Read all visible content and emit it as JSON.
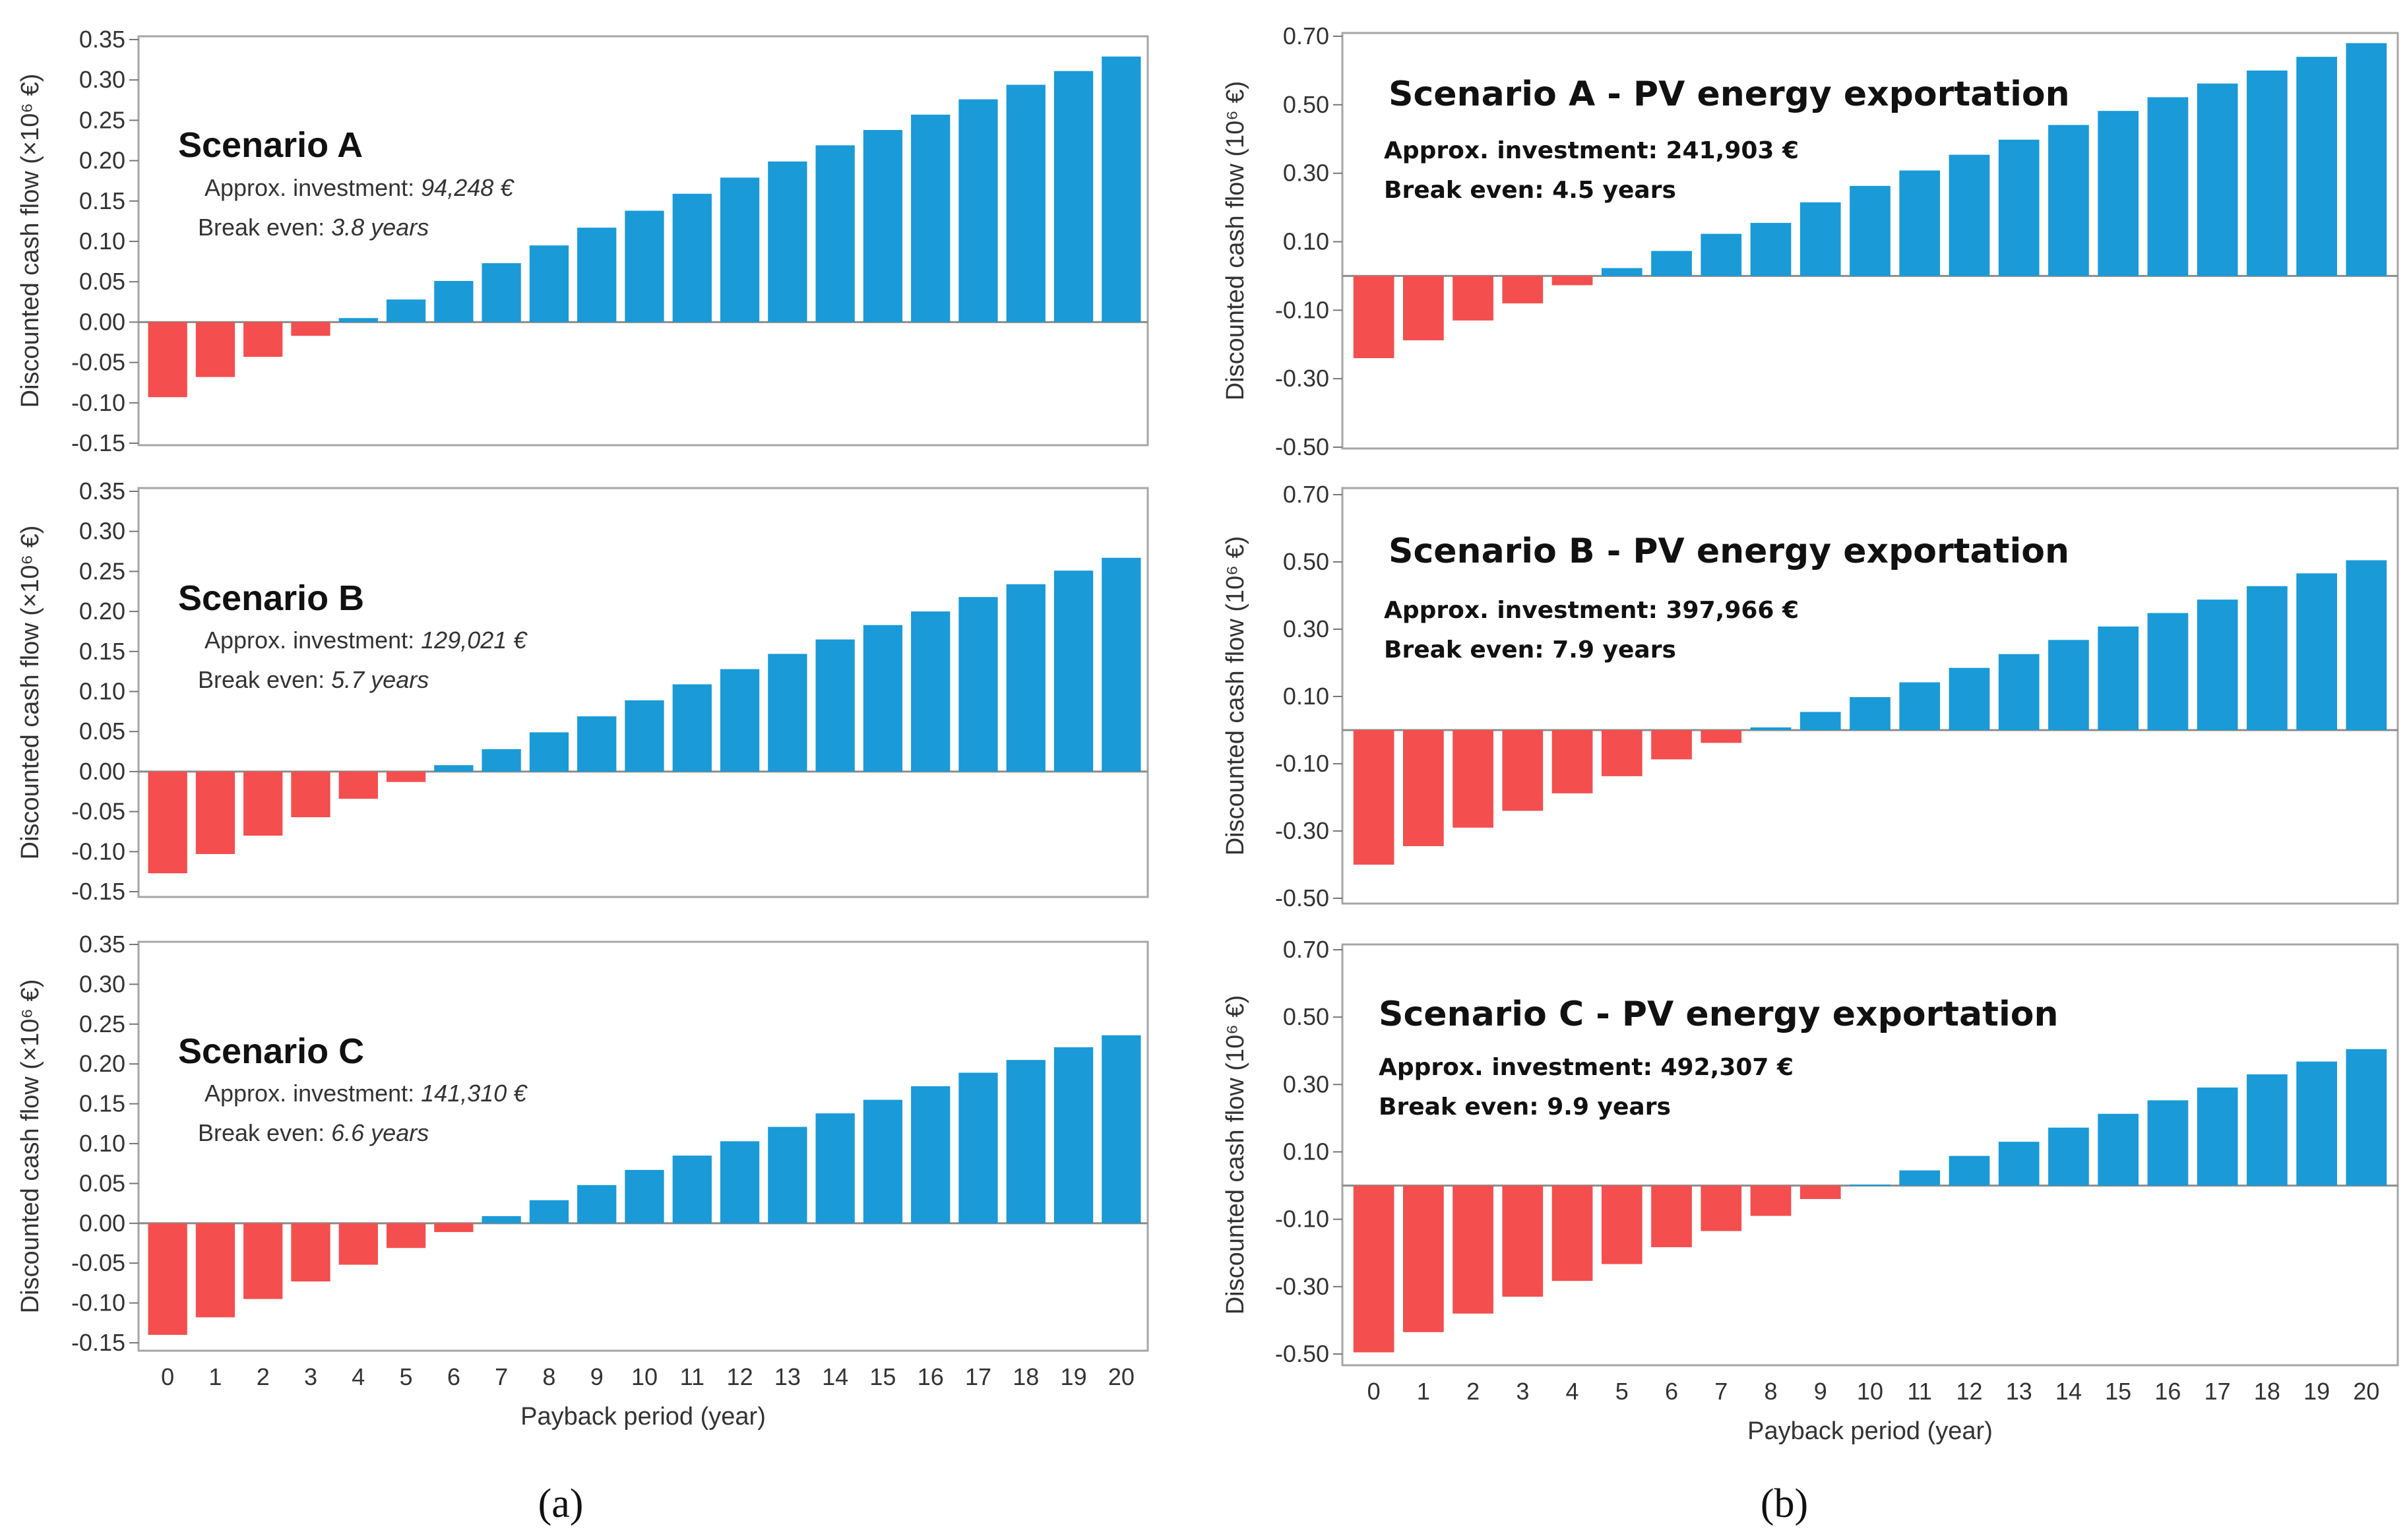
{
  "colors": {
    "negative": "#f44e4e",
    "positive": "#1a9ad7",
    "frame": "#a6a6a6"
  },
  "panel_labels": {
    "a": "(a)",
    "b": "(b)"
  },
  "chart_data": [
    {
      "type": "bar",
      "column": "a",
      "title": "Scenario A",
      "investment_label": "Approx. investment: ",
      "investment_value": "94,248 €",
      "break_even_label": "Break even: ",
      "break_even_value": "3.8 years",
      "ylabel": "Discounted cash flow (×10⁶ €)",
      "xlabel": "",
      "ylim": [
        -0.15,
        0.35
      ],
      "yticks": [
        "-0.15",
        "-0.10",
        "-0.05",
        "0.00",
        "0.05",
        "0.10",
        "0.15",
        "0.20",
        "0.25",
        "0.30",
        "0.35"
      ],
      "categories": [
        "0",
        "1",
        "2",
        "3",
        "4",
        "5",
        "6",
        "7",
        "8",
        "9",
        "10",
        "11",
        "12",
        "13",
        "14",
        "15",
        "16",
        "17",
        "18",
        "19",
        "20"
      ],
      "values": [
        -0.093,
        -0.068,
        -0.043,
        -0.017,
        0.005,
        0.028,
        0.051,
        0.073,
        0.095,
        0.117,
        0.138,
        0.159,
        0.179,
        0.199,
        0.219,
        0.238,
        0.257,
        0.276,
        0.294,
        0.311,
        0.329
      ]
    },
    {
      "type": "bar",
      "column": "a",
      "title": "Scenario B",
      "investment_label": "Approx. investment: ",
      "investment_value": "129,021 €",
      "break_even_label": "Break even: ",
      "break_even_value": "5.7 years",
      "ylabel": "Discounted cash flow (×10⁶ €)",
      "xlabel": "",
      "ylim": [
        -0.15,
        0.35
      ],
      "yticks": [
        "-0.15",
        "-0.10",
        "-0.05",
        "0.00",
        "0.05",
        "0.10",
        "0.15",
        "0.20",
        "0.25",
        "0.30",
        "0.35"
      ],
      "categories": [
        "0",
        "1",
        "2",
        "3",
        "4",
        "5",
        "6",
        "7",
        "8",
        "9",
        "10",
        "11",
        "12",
        "13",
        "14",
        "15",
        "16",
        "17",
        "18",
        "19",
        "20"
      ],
      "values": [
        -0.127,
        -0.103,
        -0.08,
        -0.057,
        -0.034,
        -0.013,
        0.008,
        0.028,
        0.049,
        0.069,
        0.089,
        0.109,
        0.128,
        0.147,
        0.165,
        0.183,
        0.2,
        0.218,
        0.234,
        0.251,
        0.267
      ]
    },
    {
      "type": "bar",
      "column": "a",
      "title": "Scenario C",
      "investment_label": "Approx. investment: ",
      "investment_value": "141,310 €",
      "break_even_label": "Break even: ",
      "break_even_value": "6.6 years",
      "ylabel": "Discounted cash flow (×10⁶ €)",
      "xlabel": "Payback period (year)",
      "ylim": [
        -0.15,
        0.35
      ],
      "yticks": [
        "-0.15",
        "-0.10",
        "-0.05",
        "0.00",
        "0.05",
        "0.10",
        "0.15",
        "0.20",
        "0.25",
        "0.30",
        "0.35"
      ],
      "categories": [
        "0",
        "1",
        "2",
        "3",
        "4",
        "5",
        "6",
        "7",
        "8",
        "9",
        "10",
        "11",
        "12",
        "13",
        "14",
        "15",
        "16",
        "17",
        "18",
        "19",
        "20"
      ],
      "values": [
        -0.14,
        -0.118,
        -0.095,
        -0.073,
        -0.052,
        -0.031,
        -0.011,
        0.009,
        0.029,
        0.048,
        0.067,
        0.085,
        0.103,
        0.121,
        0.138,
        0.155,
        0.172,
        0.189,
        0.205,
        0.221,
        0.236
      ]
    },
    {
      "type": "bar",
      "column": "b",
      "title": "Scenario A - PV energy exportation",
      "investment_label": "Approx. investment: ",
      "investment_value": "241,903 €",
      "break_even_label": "Break even: ",
      "break_even_value": "4.5 years",
      "ylabel": "Discounted cash flow (10⁶ €)",
      "xlabel": "",
      "ylim": [
        -0.5,
        0.7
      ],
      "yticks": [
        "-0.50",
        "-0.30",
        "-0.10",
        "0.10",
        "0.30",
        "0.50",
        "0.70"
      ],
      "categories": [
        "0",
        "1",
        "2",
        "3",
        "4",
        "5",
        "6",
        "7",
        "8",
        "9",
        "10",
        "11",
        "12",
        "13",
        "14",
        "15",
        "16",
        "17",
        "18",
        "19",
        "20"
      ],
      "values": [
        -0.24,
        -0.188,
        -0.13,
        -0.08,
        -0.027,
        0.023,
        0.073,
        0.123,
        0.155,
        0.215,
        0.263,
        0.308,
        0.354,
        0.398,
        0.441,
        0.482,
        0.522,
        0.562,
        0.6,
        0.64,
        0.68
      ]
    },
    {
      "type": "bar",
      "column": "b",
      "title": "Scenario B - PV energy exportation",
      "investment_label": "Approx. investment: ",
      "investment_value": "397,966 €",
      "break_even_label": "Break even: ",
      "break_even_value": "7.9 years",
      "ylabel": "Discounted cash flow (10⁶ €)",
      "xlabel": "",
      "ylim": [
        -0.5,
        0.7
      ],
      "yticks": [
        "-0.50",
        "-0.30",
        "-0.10",
        "0.10",
        "0.30",
        "0.50",
        "0.70"
      ],
      "categories": [
        "0",
        "1",
        "2",
        "3",
        "4",
        "5",
        "6",
        "7",
        "8",
        "9",
        "10",
        "11",
        "12",
        "13",
        "14",
        "15",
        "16",
        "17",
        "18",
        "19",
        "20"
      ],
      "values": [
        -0.4,
        -0.345,
        -0.29,
        -0.24,
        -0.188,
        -0.137,
        -0.087,
        -0.038,
        0.008,
        0.054,
        0.098,
        0.142,
        0.185,
        0.226,
        0.268,
        0.308,
        0.348,
        0.388,
        0.428,
        0.466,
        0.505
      ]
    },
    {
      "type": "bar",
      "column": "b",
      "title": "Scenario C - PV energy exportation",
      "investment_label": "Approx. investment: ",
      "investment_value": "492,307 €",
      "break_even_label": "Break even: ",
      "break_even_value": "9.9 years",
      "ylabel": "Discounted cash flow (10⁶ €)",
      "xlabel": "Payback period (year)",
      "ylim": [
        -0.5,
        0.7
      ],
      "yticks": [
        "-0.50",
        "-0.30",
        "-0.10",
        "0.10",
        "0.30",
        "0.50",
        "0.70"
      ],
      "categories": [
        "0",
        "1",
        "2",
        "3",
        "4",
        "5",
        "6",
        "7",
        "8",
        "9",
        "10",
        "11",
        "12",
        "13",
        "14",
        "15",
        "16",
        "17",
        "18",
        "19",
        "20"
      ],
      "values": [
        -0.495,
        -0.435,
        -0.38,
        -0.33,
        -0.283,
        -0.233,
        -0.183,
        -0.135,
        -0.09,
        -0.04,
        0.003,
        0.045,
        0.088,
        0.13,
        0.172,
        0.213,
        0.253,
        0.291,
        0.33,
        0.368,
        0.405
      ]
    }
  ]
}
